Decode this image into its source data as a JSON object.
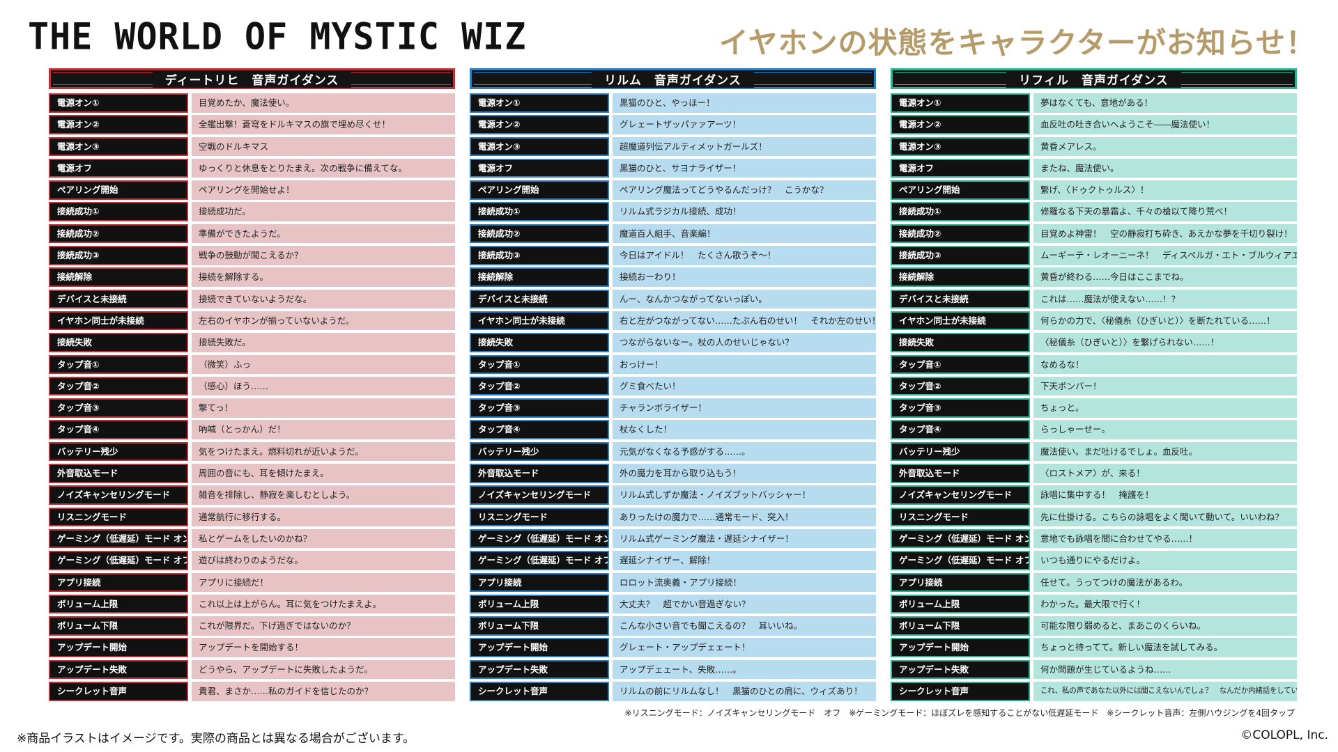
{
  "header": {
    "brand": "THE WORLD OF MYSTIC WIZ",
    "headline": "イヤホンの状態をキャラクターがお知らせ！"
  },
  "colors": {
    "dietrich": "#c0323a",
    "rilm": "#2a7fc1",
    "rifil": "#2bb394"
  },
  "labels": [
    "電源オン①",
    "電源オン②",
    "電源オン③",
    "電源オフ",
    "ペアリング開始",
    "接続成功①",
    "接続成功②",
    "接続成功③",
    "接続解除",
    "デバイスと未接続",
    "イヤホン同士が未接続",
    "接続失敗",
    "タップ音①",
    "タップ音②",
    "タップ音③",
    "タップ音④",
    "バッテリー残少",
    "外音取込モード",
    "ノイズキャンセリングモード",
    "リスニングモード",
    "ゲーミング（低遅延）モード オン",
    "ゲーミング（低遅延）モード オフ",
    "アプリ接続",
    "ボリューム上限",
    "ボリューム下限",
    "アップデート開始",
    "アップデート失敗",
    "シークレット音声"
  ],
  "panels": [
    {
      "title": "ディートリヒ　音声ガイダンス",
      "lines": [
        "目覚めたか、魔法使い。",
        "全艦出撃！蒼穹をドルキマスの旗で埋め尽くせ！",
        "空戦のドルキマス",
        "ゆっくりと休息をとりたまえ。次の戦争に備えてな。",
        "ペアリングを開始せよ！",
        "接続成功だ。",
        "準備ができたようだ。",
        "戦争の鼓動が聞こえるか？",
        "接続を解除する。",
        "接続できていないようだな。",
        "左右のイヤホンが揃っていないようだ。",
        "接続失敗だ。",
        "（微笑）ふっ",
        "（感心）ほう……",
        "撃てっ！",
        "吶喊（とっかん）だ！",
        "気をつけたまえ。燃料切れが近いようだ。",
        "周囲の音にも、耳を傾けたまえ。",
        "雑音を排除し、静寂を楽しむとしよう。",
        "通常航行に移行する。",
        "私とゲームをしたいのかね？",
        "遊びは終わりのようだな。",
        "アプリに接続だ！",
        "これ以上は上がらん。耳に気をつけたまえよ。",
        "これが限界だ。下げ過ぎではないのか？",
        "アップデートを開始する！",
        "どうやら、アップデートに失敗したようだ。",
        "貴君、まさか……私のガイドを信じたのか？"
      ]
    },
    {
      "title": "リルム　音声ガイダンス",
      "lines": [
        "黒猫のひと、やっほー！",
        "グレェートザッパァァアーツ！",
        "超魔道列伝アルティメットガールズ！",
        "黒猫のひと、サヨナライザー！",
        "ペアリング魔法ってどうやるんだっけ？　こうかな？",
        "リルム式ラジカル接続、成功！",
        "魔道百人組手、音楽編！",
        "今日はアイドル！　たくさん歌うぞ～！",
        "接続おーわり！",
        "んー、なんかつながってないっぽい。",
        "右と左がつながってない……たぶん右のせい！　それか左のせい！",
        "つながらないなー。杖の人のせいじゃない？",
        "おっけー！",
        "グミ食べたい！",
        "チャランボライザー！",
        "杖なくした！",
        "元気がなくなる予感がする……。",
        "外の魔力を耳から取り込もう！",
        "リルム式しずか魔法・ノイズブットバッシャー！",
        "ありったけの魔力で……通常モード、突入！",
        "リルム式ゲーミング魔法・遅延シナイザー！",
        "遅延シナイザー、解除！",
        "ロロット流奥義・アプリ接続！",
        "大丈夫？　超でかい音過ぎない？",
        "こんな小さい音でも聞こえるの？　耳いいね。",
        "グレェート・アップデェェート！",
        "アップデェェート、失敗……。",
        "リルムの前にリルムなし！　黒猫のひとの肩に、ウィズあり！"
      ]
    },
    {
      "title": "リフィル　音声ガイダンス",
      "lines": [
        "夢はなくても、意地がある！",
        "血反吐の吐き合いへようこそ――魔法使い！",
        "黄昏メアレス。",
        "またね、魔法使い。",
        "繋げ、〈ドゥクトゥルス〉！",
        "修羅なる下天の暴霜よ、千々の槍以て降り荒べ！",
        "目覚めよ神雷！　空の静寂打ち砕き、あえかな夢を千切り裂け！",
        "ムーギーテ・レオーニーネ！　ディスペルガ・エト・ブルウィアエ・ルトゥムクエ！",
        "黄昏が終わる……今日はここまでね。",
        "これは……魔法が使えない……！？",
        "何らかの力で、〈秘儀糸（ひぎいと）〉を断たれている……！",
        "〈秘儀糸（ひぎいと）〉を繋げられない……！",
        "なめるな！",
        "下天ボンバー！",
        "ちょっと。",
        "らっしゃーせー。",
        "魔法使い。まだ吐けるでしょ。血反吐。",
        "〈ロストメア〉が、来る！",
        "詠唱に集中する！　掩護を！",
        "先に仕掛ける。こちらの詠唱をよく聞いて動いて。いいわね？",
        "意地でも詠唱を間に合わせてやる……！",
        "いつも通りにやるだけよ。",
        "任せて。うってつけの魔法があるわ。",
        "わかった。最大限で行く！",
        "可能な限り弱めると、まあこのくらいね。",
        "ちょっと待ってて。新しい魔法を試してみる。",
        "何か問題が生じているようね……",
        "これ、私の声であなた以外には聞こえないんでしょ？　なんだか内緒話をしているみたいね。"
      ]
    }
  ],
  "footer": {
    "notes": "※リスニングモード：ノイズキャンセリングモード　オフ　※ゲーミングモード：ほぼズレを感知することがない低遅延モード　※シークレット音声：左側ハウジングを4回タップ",
    "disclaimer": "※商品イラストはイメージです。実際の商品とは異なる場合がございます。",
    "copyright": "©COLOPL, Inc."
  }
}
